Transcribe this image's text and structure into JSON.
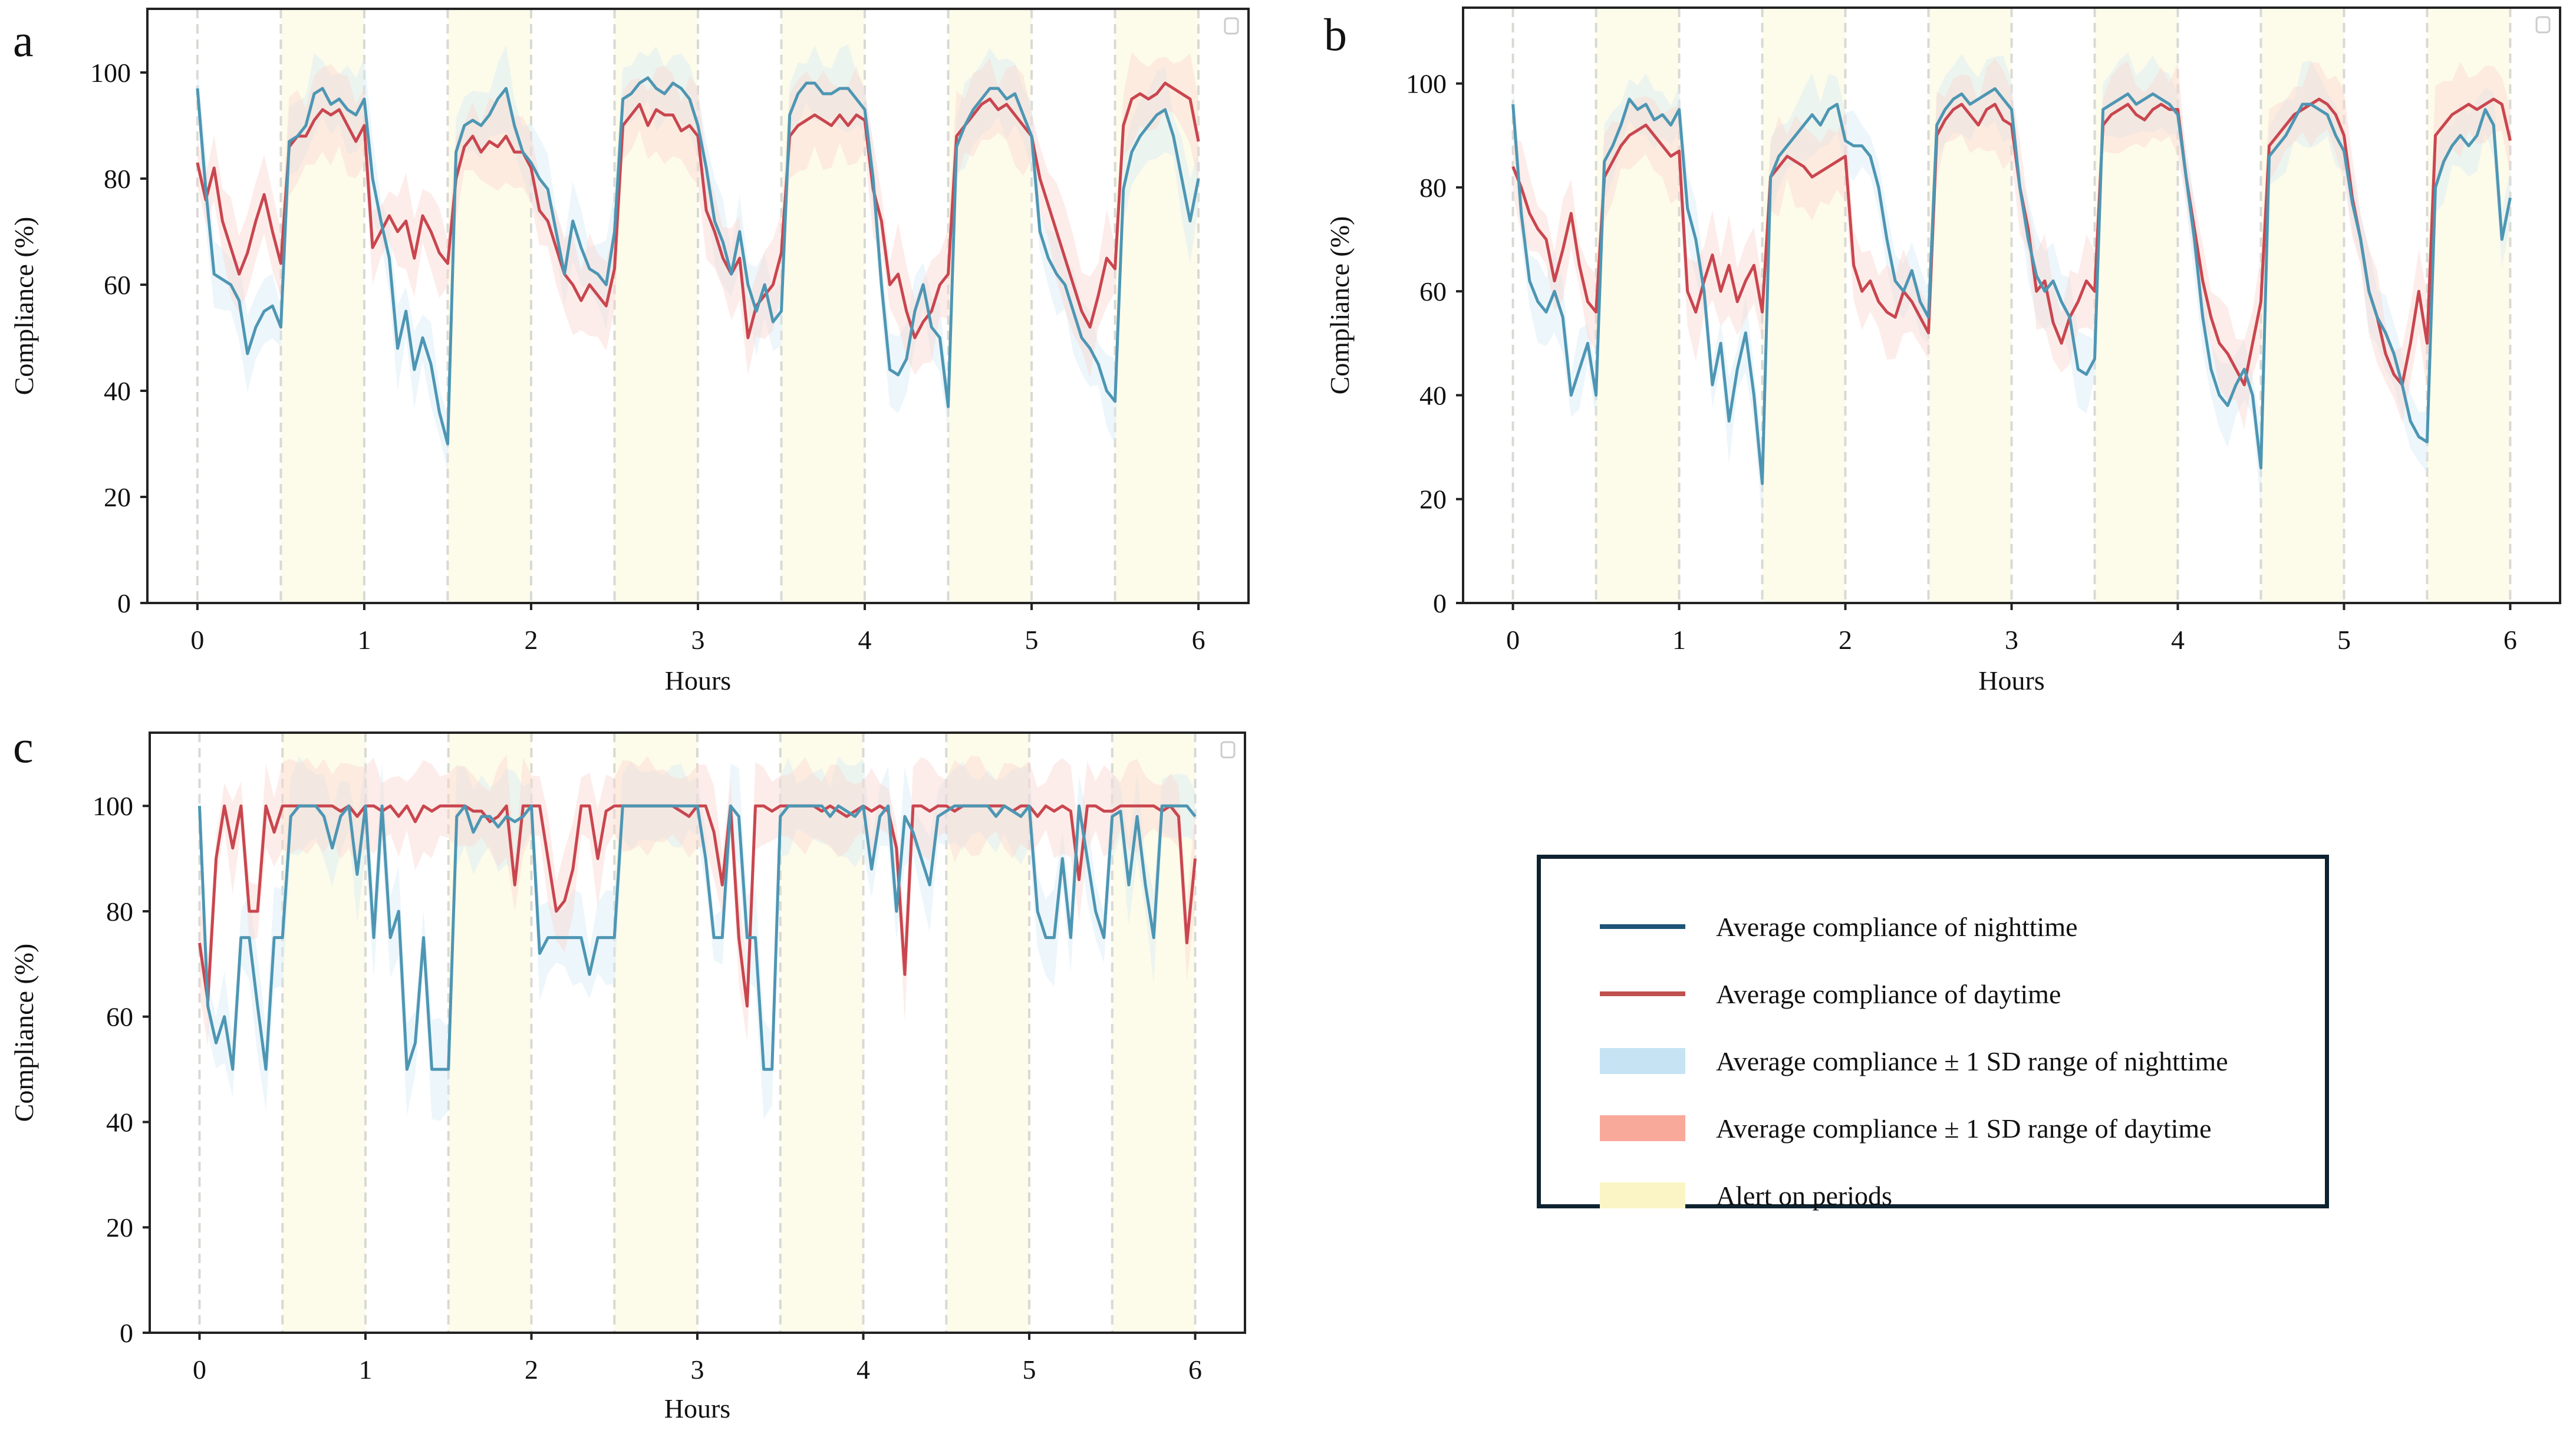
{
  "figure": {
    "legend": {
      "items": [
        {
          "label": "Average compliance of nighttime",
          "kind": "line",
          "color": "#1f5377"
        },
        {
          "label": "Average compliance of daytime",
          "kind": "line",
          "color": "#c0504d"
        },
        {
          "label": "Average compliance ± 1 SD range of nighttime",
          "kind": "patch",
          "color": "#c5e3f3"
        },
        {
          "label": "Average compliance ± 1 SD range of daytime",
          "kind": "patch",
          "color": "#f9a99a"
        },
        {
          "label": "Alert on periods",
          "kind": "patch",
          "color": "#fbf5c6"
        }
      ]
    },
    "colors": {
      "night_line": "#4d96b3",
      "day_line": "#c9464f",
      "night_band": "#d6ebf7",
      "day_band": "#fbd6d0",
      "alert_band": "#fdfbea",
      "grid_dash": "#d9d9d4"
    }
  },
  "chart_data": [
    {
      "panel": "a",
      "type": "line",
      "title": "",
      "xlabel": "Hours",
      "ylabel": "Compliance (%)",
      "xlim": [
        -0.3,
        6.3
      ],
      "ylim": [
        0,
        112
      ],
      "xticks": [
        "0",
        "1",
        "2",
        "3",
        "4",
        "5",
        "6"
      ],
      "yticks": [
        "0",
        "20",
        "40",
        "60",
        "80",
        "100"
      ],
      "alert_periods": [
        [
          0.5,
          1.0
        ],
        [
          1.5,
          2.0
        ],
        [
          2.5,
          3.0
        ],
        [
          3.5,
          4.0
        ],
        [
          4.5,
          5.0
        ],
        [
          5.5,
          6.0
        ]
      ],
      "dashed_lines": [
        0,
        0.5,
        1,
        1.5,
        2,
        2.5,
        3,
        3.5,
        4,
        4.5,
        5,
        5.5,
        6
      ],
      "x_step": 0.05,
      "series": [
        {
          "name": "Average compliance of nighttime",
          "values": [
            97,
            78,
            62,
            61,
            60,
            57,
            47,
            52,
            55,
            56,
            52,
            87,
            88,
            90,
            96,
            97,
            94,
            95,
            93,
            92,
            95,
            80,
            72,
            65,
            48,
            55,
            44,
            50,
            45,
            36,
            30,
            85,
            90,
            91,
            90,
            92,
            95,
            97,
            90,
            85,
            83,
            80,
            78,
            70,
            62,
            72,
            67,
            63,
            62,
            60,
            70,
            95,
            96,
            98,
            99,
            97,
            96,
            98,
            97,
            95,
            90,
            82,
            72,
            68,
            62,
            70,
            60,
            55,
            60,
            53,
            55,
            92,
            96,
            98,
            98,
            96,
            96,
            97,
            97,
            95,
            93,
            80,
            60,
            44,
            43,
            46,
            55,
            60,
            52,
            50,
            37,
            86,
            90,
            93,
            95,
            97,
            97,
            95,
            96,
            92,
            88,
            70,
            65,
            62,
            60,
            55,
            50,
            48,
            45,
            40,
            38,
            78,
            85,
            88,
            90,
            92,
            93,
            88,
            80,
            72,
            80
          ]
        },
        {
          "name": "Average compliance of daytime",
          "values": [
            83,
            76,
            82,
            72,
            67,
            62,
            66,
            72,
            77,
            70,
            64,
            86,
            88,
            88,
            91,
            93,
            92,
            93,
            90,
            87,
            90,
            67,
            70,
            73,
            70,
            72,
            65,
            73,
            70,
            66,
            64,
            80,
            86,
            88,
            85,
            87,
            86,
            88,
            85,
            85,
            82,
            74,
            72,
            67,
            62,
            60,
            57,
            60,
            58,
            56,
            63,
            90,
            92,
            94,
            90,
            93,
            92,
            92,
            89,
            90,
            88,
            74,
            70,
            65,
            62,
            65,
            50,
            56,
            58,
            60,
            66,
            88,
            90,
            91,
            92,
            91,
            90,
            92,
            90,
            92,
            91,
            78,
            72,
            60,
            62,
            55,
            50,
            53,
            55,
            60,
            62,
            88,
            90,
            92,
            94,
            95,
            93,
            94,
            92,
            90,
            88,
            80,
            75,
            70,
            65,
            60,
            55,
            52,
            58,
            65,
            63,
            90,
            95,
            96,
            95,
            96,
            98,
            97,
            96,
            95,
            87
          ]
        },
        {
          "name": "Average compliance ± 1 SD range of nighttime",
          "sd": 6
        },
        {
          "name": "Average compliance ± 1 SD range of daytime",
          "sd": 7
        }
      ]
    },
    {
      "panel": "b",
      "type": "line",
      "title": "",
      "xlabel": "Hours",
      "ylabel": "Compliance (%)",
      "xlim": [
        -0.3,
        6.3
      ],
      "ylim": [
        0,
        114.6
      ],
      "xticks": [
        "0",
        "1",
        "2",
        "3",
        "4",
        "5",
        "6"
      ],
      "yticks": [
        "0",
        "20",
        "40",
        "60",
        "80",
        "100"
      ],
      "alert_periods": [
        [
          0.5,
          1.0
        ],
        [
          1.5,
          2.0
        ],
        [
          2.5,
          3.0
        ],
        [
          3.5,
          4.0
        ],
        [
          4.5,
          5.0
        ],
        [
          5.5,
          6.0
        ]
      ],
      "dashed_lines": [
        0,
        0.5,
        1,
        1.5,
        2,
        2.5,
        3,
        3.5,
        4,
        4.5,
        5,
        5.5,
        6
      ],
      "x_step": 0.05,
      "series": [
        {
          "name": "Average compliance of nighttime",
          "values": [
            96,
            75,
            62,
            58,
            56,
            60,
            55,
            40,
            45,
            50,
            40,
            85,
            88,
            92,
            97,
            95,
            96,
            93,
            94,
            92,
            95,
            76,
            70,
            60,
            42,
            50,
            35,
            45,
            52,
            40,
            23,
            82,
            86,
            88,
            90,
            92,
            94,
            92,
            95,
            96,
            89,
            88,
            88,
            86,
            80,
            70,
            62,
            60,
            64,
            58,
            55,
            92,
            95,
            97,
            98,
            96,
            97,
            98,
            99,
            97,
            95,
            80,
            70,
            63,
            60,
            62,
            58,
            55,
            45,
            44,
            47,
            95,
            96,
            97,
            98,
            96,
            97,
            98,
            97,
            96,
            94,
            82,
            70,
            55,
            45,
            40,
            38,
            42,
            45,
            40,
            26,
            86,
            88,
            90,
            93,
            96,
            96,
            95,
            94,
            90,
            87,
            77,
            70,
            60,
            55,
            52,
            48,
            42,
            35,
            32,
            31,
            80,
            85,
            88,
            90,
            88,
            90,
            95,
            92,
            70,
            78
          ]
        },
        {
          "name": "Average compliance of daytime",
          "values": [
            84,
            80,
            75,
            72,
            70,
            62,
            68,
            75,
            65,
            58,
            56,
            82,
            85,
            88,
            90,
            91,
            92,
            90,
            88,
            86,
            87,
            60,
            56,
            62,
            67,
            60,
            65,
            58,
            62,
            65,
            56,
            82,
            84,
            86,
            85,
            84,
            82,
            83,
            84,
            85,
            86,
            65,
            60,
            62,
            58,
            56,
            55,
            60,
            58,
            55,
            52,
            90,
            93,
            95,
            96,
            94,
            92,
            95,
            96,
            93,
            92,
            80,
            72,
            60,
            62,
            54,
            50,
            55,
            58,
            62,
            60,
            92,
            94,
            95,
            96,
            94,
            93,
            95,
            96,
            95,
            95,
            82,
            72,
            62,
            55,
            50,
            48,
            45,
            42,
            50,
            58,
            88,
            90,
            92,
            94,
            95,
            96,
            97,
            96,
            94,
            90,
            78,
            70,
            60,
            55,
            48,
            44,
            42,
            50,
            60,
            50,
            90,
            92,
            94,
            95,
            96,
            95,
            96,
            97,
            96,
            89
          ]
        },
        {
          "name": "Average compliance ± 1 SD range of nighttime",
          "sd": 6
        },
        {
          "name": "Average compliance ± 1 SD range of daytime",
          "sd": 7
        }
      ]
    },
    {
      "panel": "c",
      "type": "line",
      "title": "",
      "xlabel": "Hours",
      "ylabel": "Compliance (%)",
      "xlim": [
        -0.3,
        6.3
      ],
      "ylim": [
        0,
        113.9
      ],
      "xticks": [
        "0",
        "1",
        "2",
        "3",
        "4",
        "5",
        "6"
      ],
      "yticks": [
        "0",
        "20",
        "40",
        "60",
        "80",
        "100"
      ],
      "alert_periods": [
        [
          0.5,
          1.0
        ],
        [
          1.5,
          2.0
        ],
        [
          2.5,
          3.0
        ],
        [
          3.5,
          4.0
        ],
        [
          4.5,
          5.0
        ],
        [
          5.5,
          6.0
        ]
      ],
      "dashed_lines": [
        0,
        0.5,
        1,
        1.5,
        2,
        2.5,
        3,
        3.5,
        4,
        4.5,
        5,
        5.5,
        6
      ],
      "x_step": 0.05,
      "series": [
        {
          "name": "Average compliance of nighttime",
          "values": [
            100,
            62,
            55,
            60,
            50,
            75,
            75,
            62,
            50,
            75,
            75,
            98,
            100,
            100,
            100,
            98,
            92,
            98,
            100,
            87,
            100,
            75,
            100,
            75,
            80,
            50,
            55,
            75,
            50,
            50,
            50,
            98,
            100,
            95,
            98,
            98,
            96,
            98,
            97,
            98,
            100,
            72,
            75,
            75,
            75,
            75,
            75,
            68,
            75,
            75,
            75,
            100,
            100,
            100,
            100,
            100,
            100,
            100,
            100,
            100,
            100,
            90,
            75,
            75,
            100,
            98,
            75,
            75,
            50,
            50,
            98,
            100,
            100,
            100,
            100,
            100,
            98,
            100,
            99,
            98,
            100,
            88,
            98,
            100,
            80,
            98,
            95,
            90,
            85,
            98,
            99,
            100,
            100,
            100,
            100,
            100,
            98,
            100,
            99,
            98,
            100,
            80,
            75,
            75,
            90,
            75,
            100,
            90,
            80,
            75,
            98,
            99,
            85,
            98,
            85,
            75,
            100,
            100,
            100,
            100,
            98
          ]
        },
        {
          "name": "Average compliance of daytime",
          "values": [
            74,
            63,
            90,
            100,
            92,
            100,
            80,
            80,
            100,
            95,
            100,
            100,
            100,
            100,
            100,
            100,
            100,
            99,
            100,
            98,
            100,
            100,
            99,
            100,
            98,
            100,
            97,
            100,
            99,
            100,
            100,
            100,
            100,
            99,
            99,
            97,
            98,
            100,
            85,
            100,
            100,
            100,
            90,
            80,
            82,
            88,
            100,
            100,
            90,
            99,
            100,
            100,
            100,
            100,
            100,
            100,
            100,
            100,
            99,
            98,
            100,
            100,
            95,
            85,
            100,
            75,
            62,
            100,
            100,
            99,
            100,
            100,
            100,
            100,
            100,
            99,
            100,
            99,
            98,
            99,
            100,
            99,
            100,
            99,
            92,
            68,
            100,
            100,
            99,
            100,
            100,
            99,
            100,
            100,
            100,
            100,
            100,
            100,
            99,
            100,
            100,
            98,
            100,
            99,
            100,
            99,
            86,
            100,
            100,
            99,
            99,
            100,
            100,
            100,
            100,
            100,
            99,
            100,
            98,
            74,
            90
          ]
        },
        {
          "name": "Average compliance ± 1 SD range of nighttime",
          "sd": 7
        },
        {
          "name": "Average compliance ± 1 SD range of daytime",
          "sd": 7
        }
      ]
    }
  ]
}
